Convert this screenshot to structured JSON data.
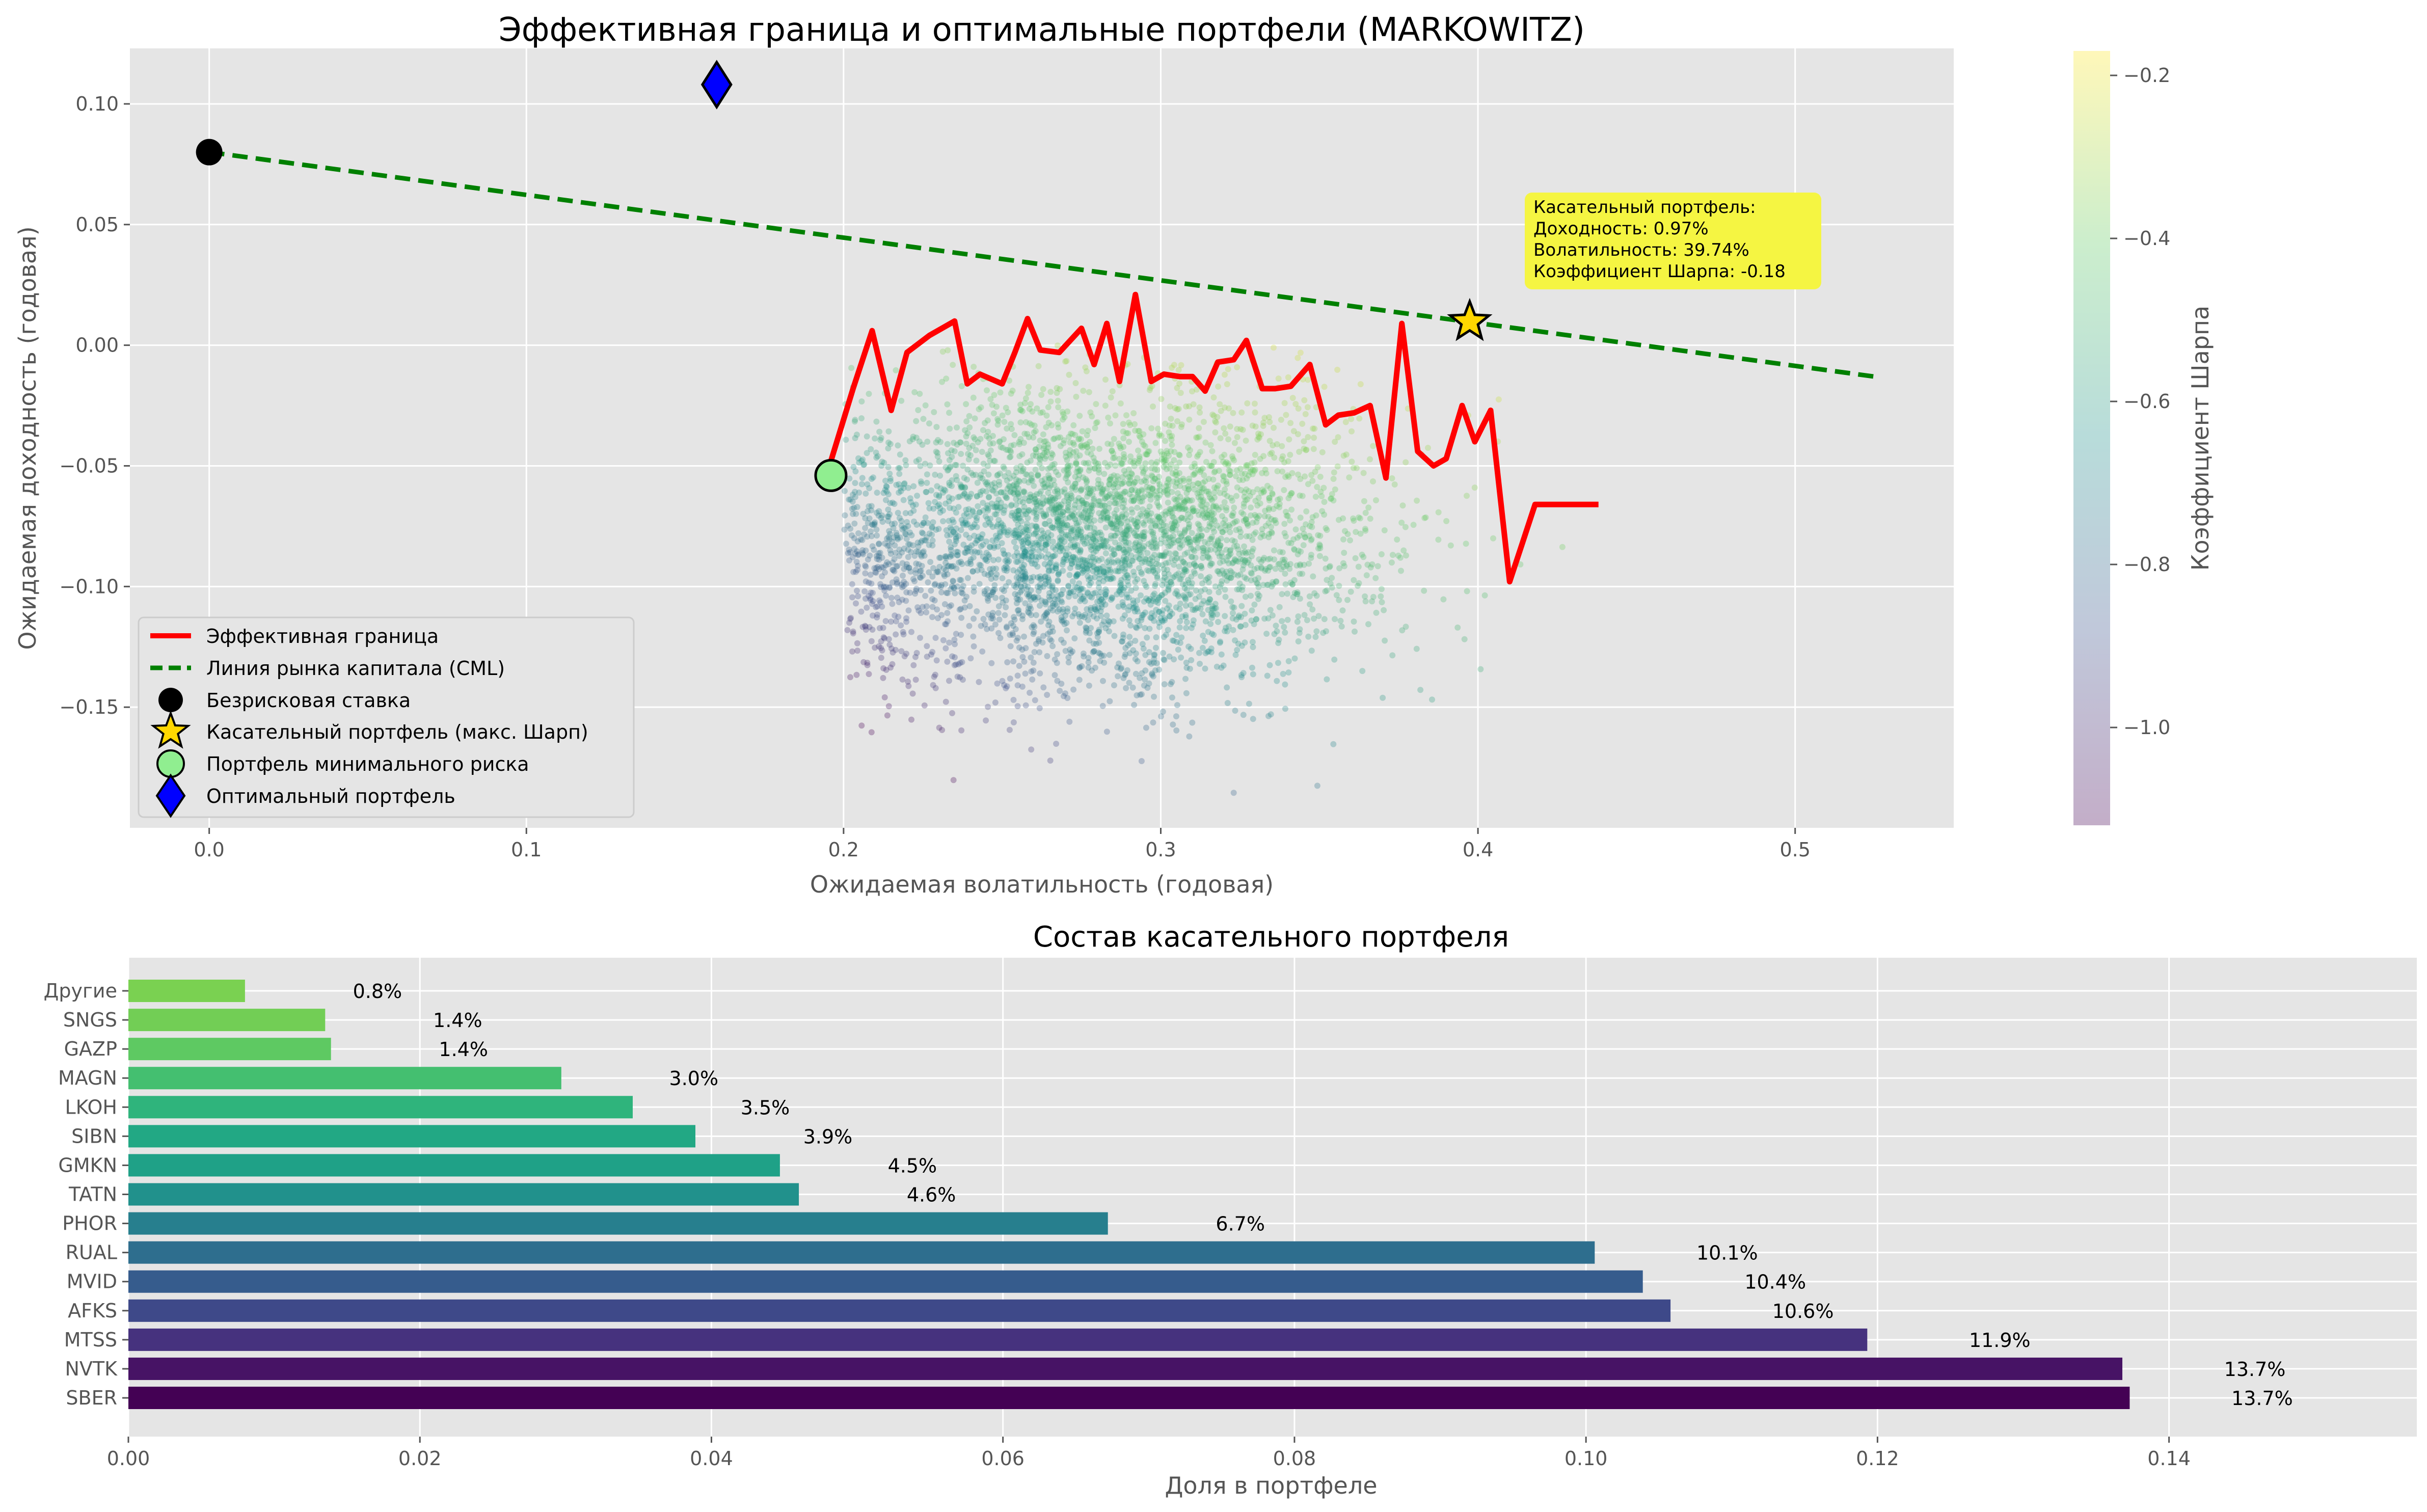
{
  "chart_data": [
    {
      "type": "scatter",
      "title": "Эффективная граница и оптимальные портфели (MARKOWITZ)",
      "xlabel": "Ожидаемая волатильность (годовая)",
      "ylabel": "Ожидаемая доходность (годовая)",
      "xlim": [
        -0.025,
        0.55
      ],
      "ylim": [
        -0.2,
        0.123
      ],
      "xticks": [
        0.0,
        0.1,
        0.2,
        0.3,
        0.4,
        0.5
      ],
      "yticks": [
        -0.15,
        -0.1,
        -0.05,
        0.0,
        0.05,
        0.1
      ],
      "xtick_labels": [
        "0.0",
        "0.1",
        "0.2",
        "0.3",
        "0.4",
        "0.5"
      ],
      "ytick_labels": [
        "−0.15",
        "−0.10",
        "−0.05",
        "0.00",
        "0.05",
        "0.10"
      ],
      "grid": true,
      "legend_position": "lower-left",
      "colorbar": {
        "label": "Коэффициент Шарпа",
        "range": [
          -1.12,
          -0.17
        ],
        "ticks": [
          -1.0,
          -0.8,
          -0.6,
          -0.4,
          -0.2
        ],
        "tick_labels": [
          "−1.0",
          "−0.8",
          "−0.6",
          "−0.4",
          "−0.2"
        ],
        "colormap": "viridis"
      },
      "random_portfolios": {
        "count": 4000,
        "vol_range": [
          0.2,
          0.43
        ],
        "ret_range": [
          -0.19,
          0.0
        ],
        "center": [
          0.28,
          -0.08
        ]
      },
      "series": [
        {
          "name": "Эффективная граница",
          "kind": "line",
          "color": "#ff0000",
          "x": [
            0.196,
            0.203,
            0.209,
            0.215,
            0.22,
            0.227,
            0.235,
            0.239,
            0.243,
            0.25,
            0.254,
            0.258,
            0.262,
            0.268,
            0.275,
            0.279,
            0.283,
            0.287,
            0.292,
            0.297,
            0.301,
            0.306,
            0.31,
            0.314,
            0.318,
            0.323,
            0.327,
            0.332,
            0.336,
            0.341,
            0.347,
            0.352,
            0.356,
            0.361,
            0.366,
            0.371,
            0.376,
            0.381,
            0.386,
            0.39,
            0.395,
            0.399,
            0.404,
            0.41,
            0.414,
            0.418,
            0.423,
            0.427,
            0.43,
            0.434,
            0.438
          ],
          "y": [
            -0.048,
            -0.018,
            0.006,
            -0.027,
            -0.003,
            0.004,
            0.01,
            -0.016,
            -0.012,
            -0.016,
            -0.003,
            0.011,
            -0.002,
            -0.003,
            0.007,
            -0.008,
            0.009,
            -0.015,
            0.021,
            -0.015,
            -0.012,
            -0.013,
            -0.013,
            -0.019,
            -0.007,
            -0.006,
            0.002,
            -0.018,
            -0.018,
            -0.017,
            -0.008,
            -0.033,
            -0.029,
            -0.028,
            -0.025,
            -0.055,
            0.009,
            -0.044,
            -0.05,
            -0.047,
            -0.025,
            -0.04,
            -0.027,
            -0.098,
            -0.082,
            -0.066,
            -0.066,
            -0.066,
            -0.066,
            -0.066,
            -0.066
          ]
        },
        {
          "name": "Линия рынка капитала (CML)",
          "kind": "dashed-line",
          "color": "#008000",
          "x": [
            0.0,
            0.525
          ],
          "y": [
            0.08,
            -0.013
          ]
        },
        {
          "name": "Безрисковая ставка",
          "kind": "marker-circle",
          "color": "#000000",
          "x": [
            0.0
          ],
          "y": [
            0.08
          ]
        },
        {
          "name": "Касательный портфель (макс. Шарп)",
          "kind": "marker-star",
          "color": "#ffd700",
          "x": [
            0.3974
          ],
          "y": [
            0.0097
          ]
        },
        {
          "name": "Портфель минимального риска",
          "kind": "marker-circle",
          "color": "#90ee90",
          "x": [
            0.196
          ],
          "y": [
            -0.054
          ]
        },
        {
          "name": "Оптимальный портфель",
          "kind": "marker-diamond",
          "color": "#0000ff",
          "x": [
            0.16
          ],
          "y": [
            0.108
          ]
        }
      ],
      "annotation": {
        "lines": [
          "Касательный портфель:",
          "Доходность: 0.97%",
          "Волатильность: 39.74%",
          "Коэффициент Шарпа: -0.18"
        ],
        "background": "#f5f542"
      }
    },
    {
      "type": "bar",
      "orientation": "horizontal",
      "title": "Состав касательного портфеля",
      "xlabel": "Доля в портфеле",
      "ylabel": "",
      "xlim": [
        0,
        0.157
      ],
      "xticks": [
        0.0,
        0.02,
        0.04,
        0.06,
        0.08,
        0.1,
        0.12,
        0.14
      ],
      "xtick_labels": [
        "0.00",
        "0.02",
        "0.04",
        "0.06",
        "0.08",
        "0.10",
        "0.12",
        "0.14"
      ],
      "grid": true,
      "categories": [
        "SBER",
        "NVTK",
        "MTSS",
        "AFKS",
        "MVID",
        "RUAL",
        "PHOR",
        "TATN",
        "GMKN",
        "SIBN",
        "LKOH",
        "MAGN",
        "GAZP",
        "SNGS",
        "Другие"
      ],
      "values": [
        0.1373,
        0.1368,
        0.1193,
        0.1058,
        0.1039,
        0.1006,
        0.0672,
        0.046,
        0.0447,
        0.0389,
        0.0346,
        0.0297,
        0.0139,
        0.0135,
        0.008
      ],
      "value_labels": [
        "13.7%",
        "13.7%",
        "11.9%",
        "10.6%",
        "10.4%",
        "10.1%",
        "6.7%",
        "4.6%",
        "4.5%",
        "3.9%",
        "3.5%",
        "3.0%",
        "1.4%",
        "1.4%",
        "0.8%"
      ],
      "colors": [
        "#440154",
        "#471365",
        "#46327e",
        "#3e4989",
        "#365c8d",
        "#2e6e8e",
        "#277f8e",
        "#21918c",
        "#1fa187",
        "#22a884",
        "#2fb47c",
        "#44bf70",
        "#5ec962",
        "#72ce55",
        "#7ad151"
      ]
    }
  ]
}
